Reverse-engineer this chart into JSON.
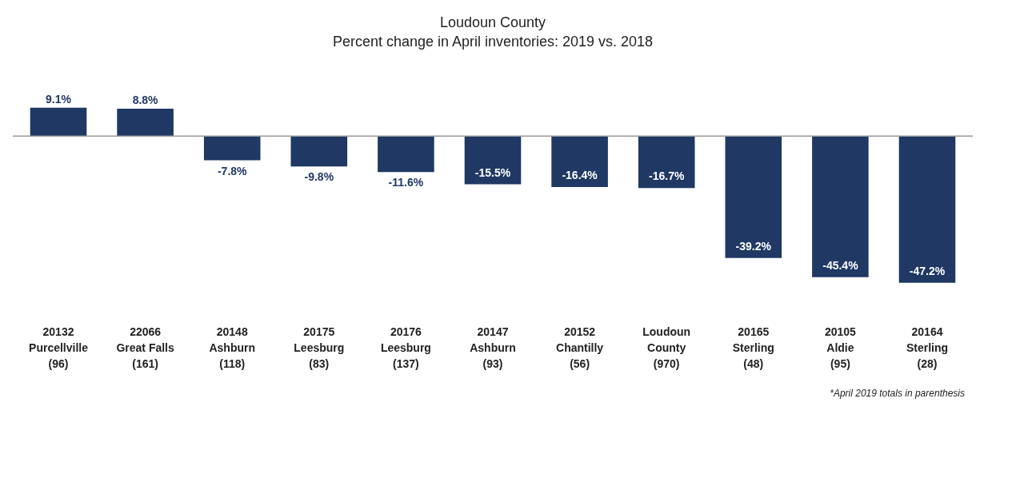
{
  "chart_data": {
    "type": "bar",
    "title": "Loudoun County",
    "subtitle": "Percent change in April inventories: 2019 vs. 2018",
    "categories": [
      "20132\nPurcellville\n(96)",
      "22066\nGreat Falls\n(161)",
      "20148\nAshburn\n(118)",
      "20175\nLeesburg\n(83)",
      "20176\nLeesburg\n(137)",
      "20147\nAshburn\n(93)",
      "20152\nChantilly\n(56)",
      "Loudoun\nCounty\n(970)",
      "20165\nSterling\n(48)",
      "20105\nAldie\n(95)",
      "20164\nSterling\n(28)"
    ],
    "values": [
      9.1,
      8.8,
      -7.8,
      -9.8,
      -11.6,
      -15.5,
      -16.4,
      -16.7,
      -39.2,
      -45.4,
      -47.2
    ],
    "value_labels": [
      "9.1%",
      "8.8%",
      "-7.8%",
      "-9.8%",
      "-11.6%",
      "-15.5%",
      "-16.4%",
      "-16.7%",
      "-39.2%",
      "-45.4%",
      "-47.2%"
    ],
    "color": "#1f3864",
    "annotations": [
      "*April 2019 totals in parenthesis"
    ]
  }
}
